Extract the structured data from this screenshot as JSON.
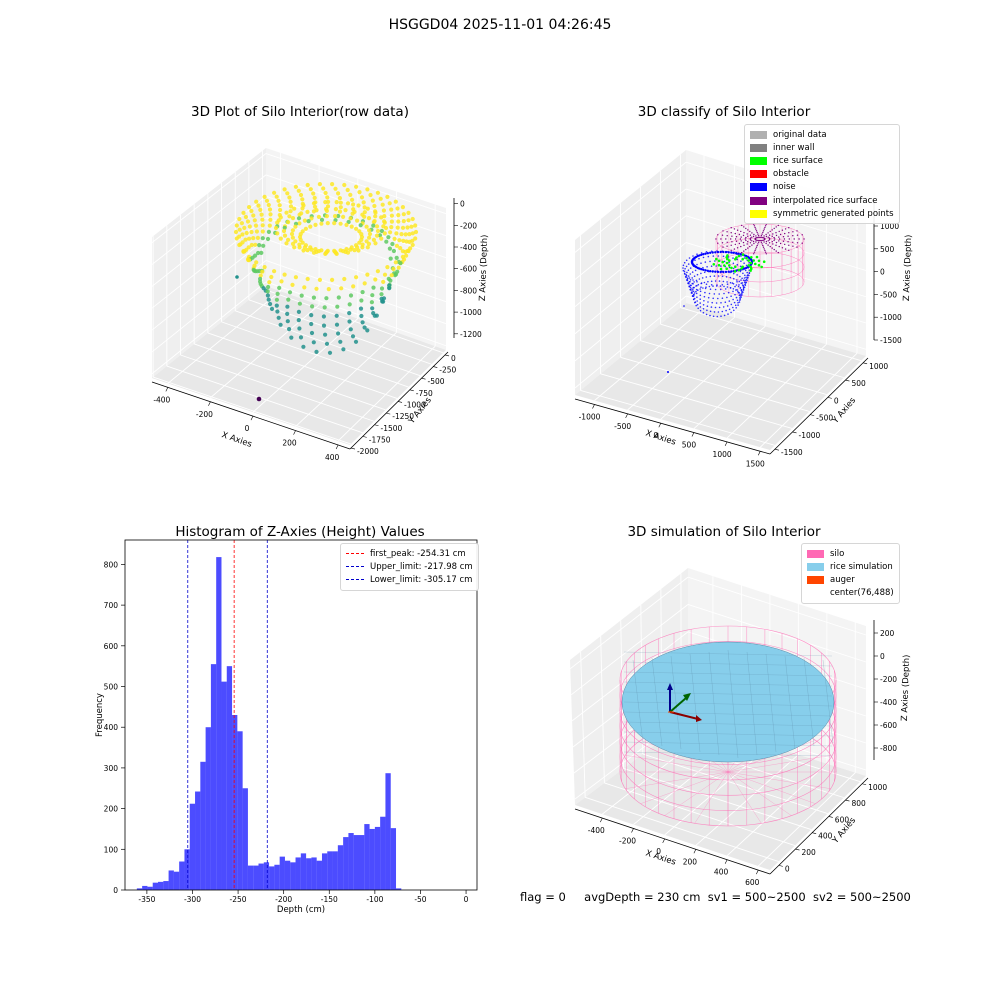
{
  "figure": {
    "suptitle": "HSGGD04 2025-11-01 04:26:45",
    "footer": {
      "flag": "flag = 0",
      "avg_depth": "avgDepth = 230 cm",
      "sv1": "sv1 = 500~2500",
      "sv2": "sv2 = 500~2500"
    }
  },
  "chart_data": [
    {
      "id": "raw",
      "type": "scatter",
      "projection": "3d",
      "title": "3D Plot of Silo Interior(row data)",
      "xlabel": "X Axies",
      "ylabel": "Y Axies",
      "zlabel": "Z Axies (Depth)",
      "xlim": [
        -480,
        480
      ],
      "ylim": [
        -2000,
        200
      ],
      "zlim": [
        -1300,
        80
      ],
      "x_ticks": [
        "-400",
        "-200",
        "0",
        "200",
        "400"
      ],
      "y_ticks": [
        "0",
        "-250",
        "-500",
        "-750",
        "-1000",
        "-1250",
        "-1500",
        "-1750",
        "-2000"
      ],
      "z_ticks": [
        "0",
        "-200",
        "-400",
        "-600",
        "-800",
        "-1000",
        "-1200"
      ],
      "colormap": [
        "#440154",
        "#21918c",
        "#5ec962",
        "#fde725"
      ],
      "ring": {
        "center_x": 60,
        "center_y": -200,
        "radius": 330,
        "z_top": -20,
        "z_bottom": -640
      },
      "outliers": [
        {
          "x": -420,
          "y": -200,
          "z": -480
        },
        {
          "x": 60,
          "y": -1300,
          "z": -1250
        }
      ],
      "grid": true
    },
    {
      "id": "classify",
      "type": "scatter",
      "projection": "3d",
      "title": "3D classify of Silo Interior",
      "xlabel": "X Axies",
      "ylabel": "Y Axies",
      "zlabel": "Z Axies (Depth)",
      "xlim": [
        -1300,
        1600
      ],
      "ylim": [
        -1800,
        1100
      ],
      "zlim": [
        -1700,
        1100
      ],
      "x_ticks": [
        "-1000",
        "-500",
        "0",
        "500",
        "1000",
        "1500"
      ],
      "y_ticks": [
        "1000",
        "500",
        "0",
        "-500",
        "-1000",
        "-1500"
      ],
      "z_ticks": [
        "1000",
        "500",
        "0",
        "-500",
        "-1000",
        "-1500"
      ],
      "legend": [
        {
          "label": "original data",
          "color": "#b0b0b0"
        },
        {
          "label": "inner wall",
          "color": "#808080"
        },
        {
          "label": "rice surface",
          "color": "#00ff00"
        },
        {
          "label": "obstacle",
          "color": "#ff0000"
        },
        {
          "label": "noise",
          "color": "#0000ff"
        },
        {
          "label": "interpolated rice surface",
          "color": "#800080"
        },
        {
          "label": "symmetric generated points",
          "color": "#ffff00"
        }
      ],
      "legend_loc": "upper right",
      "cylinder": {
        "center_x": 420,
        "center_y": 480,
        "radius": 560,
        "z_top": 400,
        "z_bottom": -600
      },
      "noise_cloud": {
        "center_x": -200,
        "center_y": -200,
        "radius": 420,
        "z_top": 0,
        "z_bottom": -700
      },
      "grid": true
    },
    {
      "id": "hist",
      "type": "bar",
      "title": "Histogram of Z-Axies (Height) Values",
      "xlabel": "Depth (cm)",
      "ylabel": "Frequency",
      "xlim": [
        -374,
        12
      ],
      "ylim": [
        0,
        860
      ],
      "x_ticks": [
        -350,
        -300,
        -250,
        -200,
        -150,
        -100,
        -50,
        0
      ],
      "y_ticks": [
        0,
        100,
        200,
        300,
        400,
        500,
        600,
        700,
        800
      ],
      "bin_start": -361,
      "bin_width": 5.8,
      "values": [
        4,
        10,
        8,
        18,
        20,
        22,
        48,
        45,
        70,
        100,
        212,
        242,
        315,
        400,
        555,
        818,
        512,
        550,
        430,
        390,
        250,
        60,
        60,
        65,
        68,
        58,
        62,
        82,
        72,
        68,
        80,
        90,
        78,
        80,
        72,
        90,
        95,
        95,
        110,
        130,
        140,
        135,
        135,
        162,
        150,
        155,
        180,
        287,
        152,
        4
      ],
      "color": "#0000ff",
      "vlines": [
        {
          "label": "first_peak: -254.31 cm",
          "x": -254.31,
          "color": "#ff0000"
        },
        {
          "label": "Upper_limit: -217.98 cm",
          "x": -217.98,
          "color": "#0000cd"
        },
        {
          "label": "Lower_limit: -305.17 cm",
          "x": -305.17,
          "color": "#0000cd"
        }
      ],
      "legend_loc": "upper right"
    },
    {
      "id": "sim",
      "type": "surface",
      "projection": "3d",
      "title": "3D simulation of Silo Interior",
      "xlabel": "X Axies",
      "ylabel": "Y Axies",
      "zlabel": "Z Axies (Depth)",
      "xlim": [
        -530,
        720
      ],
      "ylim": [
        -130,
        1100
      ],
      "zlim": [
        -920,
        330
      ],
      "x_ticks": [
        "-400",
        "-200",
        "0",
        "200",
        "400",
        "600"
      ],
      "y_ticks": [
        "1000",
        "800",
        "600",
        "400",
        "200",
        "0"
      ],
      "z_ticks": [
        "200",
        "0",
        "-200",
        "-400",
        "-600",
        "-800"
      ],
      "legend": [
        {
          "label": "silo",
          "color": "#ff69b4"
        },
        {
          "label": "rice simulation",
          "color": "#87ceeb"
        },
        {
          "label": "auger",
          "color": "#ff4500"
        },
        {
          "label": "center(76,488)",
          "color": "none"
        }
      ],
      "legend_loc": "upper right",
      "center": {
        "x": 76,
        "y": 488
      },
      "silo": {
        "radius": 560,
        "z_top": -200,
        "z_bottom": -900
      },
      "surface_z": -400,
      "grid": true
    }
  ]
}
